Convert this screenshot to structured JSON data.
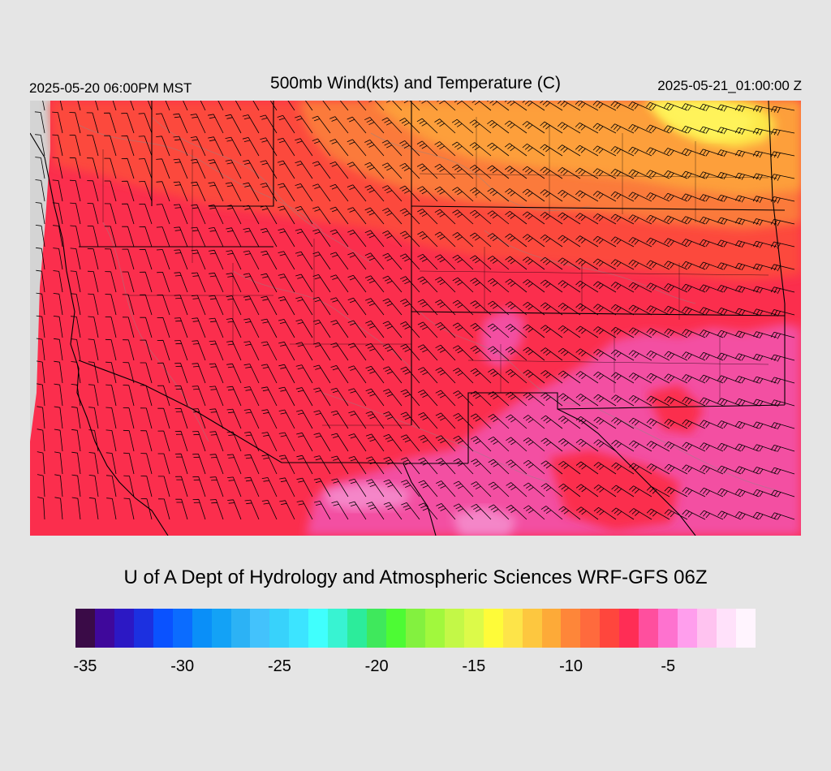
{
  "header": {
    "valid_local": "2025-05-20 06:00PM MST",
    "title": "500mb Wind(kts) and Temperature (C)",
    "valid_utc": "2025-05-21_01:00:00 Z"
  },
  "footer": {
    "credit": "U of A Dept of Hydrology and Atmospheric Sciences WRF-GFS 06Z"
  },
  "colorbar": {
    "colors": [
      "#3a0b47",
      "#3f089b",
      "#2c18c4",
      "#1c30e0",
      "#0a52ff",
      "#0b6cff",
      "#0a8ff8",
      "#13a2f6",
      "#2cb2f5",
      "#43c2fc",
      "#38d2fb",
      "#3ce4ff",
      "#40fffd",
      "#38f3d2",
      "#2cec9b",
      "#3fe85c",
      "#4dfb34",
      "#83f13f",
      "#a1f83d",
      "#c3f847",
      "#dcfa49",
      "#fefb39",
      "#fde449",
      "#fdc73f",
      "#fdaa38",
      "#fe8639",
      "#ff6a3d",
      "#ff463d",
      "#ff2d55",
      "#ff4f9e",
      "#fe72cf",
      "#ff9eed",
      "#ffc3f0",
      "#ffe1fa",
      "#fff4fe"
    ],
    "tick_labels": [
      "-35",
      "-30",
      "-25",
      "-20",
      "-15",
      "-10",
      "-5"
    ]
  },
  "map": {
    "field": "temperature",
    "region": "Southwest United States",
    "colors": {
      "warmest": "#f34fa2",
      "light_pink": "#f486c8",
      "red": "#fb2e4d",
      "orange_red": "#fc4a3e",
      "orange": "#fb7a3b",
      "amber": "#fd9f3a",
      "yellow": "#fde84a",
      "missing": "#d4d4d4",
      "borders": "#000000",
      "terrain": "#8a8a8a"
    }
  }
}
